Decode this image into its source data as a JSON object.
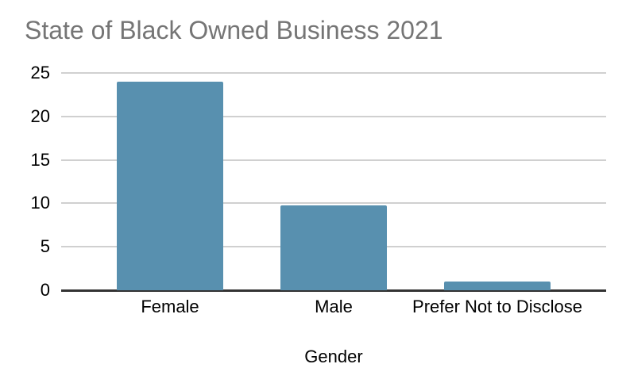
{
  "title": "State of Black Owned Business 2021",
  "colors": {
    "bar_fill": "#5890af",
    "title_text": "#757575",
    "axis_text": "#000000",
    "gridline": "#d0d0d0",
    "axis_line": "#333333",
    "background": "#ffffff"
  },
  "chart_data": {
    "type": "bar",
    "categories": [
      "Female",
      "Male",
      "Prefer Not to Disclose"
    ],
    "values": [
      24,
      9.8,
      1
    ],
    "title": "State of Black Owned Business 2021",
    "xlabel": "Gender",
    "ylabel": "",
    "ylim": [
      0,
      25
    ],
    "yticks": [
      0,
      5,
      10,
      15,
      20,
      25
    ],
    "grid": true,
    "legend": false
  }
}
